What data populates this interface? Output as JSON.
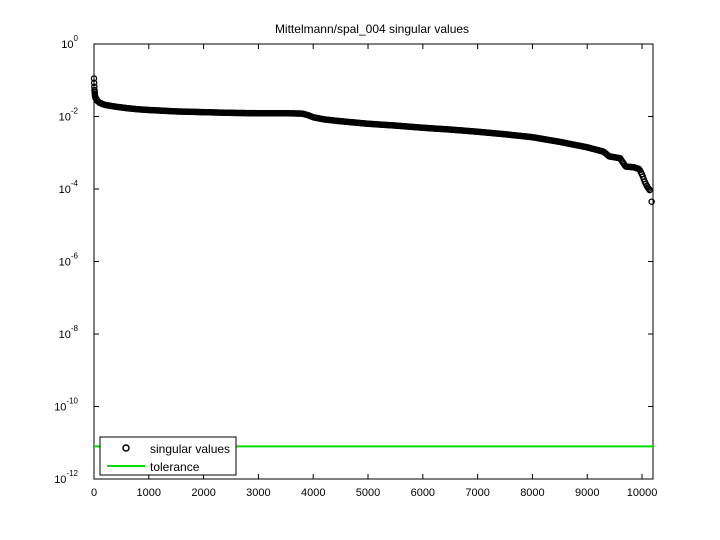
{
  "chart_data": {
    "type": "scatter",
    "title": "Mittelmann/spal_004 singular values",
    "xlabel": "",
    "ylabel": "",
    "xlim": [
      0,
      10200
    ],
    "yscale": "log",
    "ylim_exp": [
      -12,
      0
    ],
    "x_ticks": [
      0,
      1000,
      2000,
      3000,
      4000,
      5000,
      6000,
      7000,
      8000,
      9000,
      10000
    ],
    "y_ticks": [
      {
        "exp": 0,
        "base": "10",
        "sup": "0"
      },
      {
        "exp": -2,
        "base": "10",
        "sup": "-2"
      },
      {
        "exp": -4,
        "base": "10",
        "sup": "-4"
      },
      {
        "exp": -6,
        "base": "10",
        "sup": "-6"
      },
      {
        "exp": -8,
        "base": "10",
        "sup": "-8"
      },
      {
        "exp": -10,
        "base": "10",
        "sup": "-10"
      },
      {
        "exp": -12,
        "base": "10",
        "sup": "-12"
      }
    ],
    "series": [
      {
        "name": "singular values",
        "marker": "circle",
        "color": "#000000",
        "points_log10": [
          [
            0,
            -0.95
          ],
          [
            5,
            -1.15
          ],
          [
            10,
            -1.3
          ],
          [
            20,
            -1.45
          ],
          [
            50,
            -1.55
          ],
          [
            100,
            -1.62
          ],
          [
            200,
            -1.68
          ],
          [
            400,
            -1.73
          ],
          [
            600,
            -1.77
          ],
          [
            800,
            -1.8
          ],
          [
            1000,
            -1.82
          ],
          [
            1500,
            -1.86
          ],
          [
            2000,
            -1.88
          ],
          [
            2500,
            -1.9
          ],
          [
            3000,
            -1.91
          ],
          [
            3500,
            -1.91
          ],
          [
            3800,
            -1.92
          ],
          [
            3900,
            -1.96
          ],
          [
            4000,
            -2.02
          ],
          [
            4200,
            -2.08
          ],
          [
            4500,
            -2.13
          ],
          [
            5000,
            -2.2
          ],
          [
            5500,
            -2.25
          ],
          [
            6000,
            -2.31
          ],
          [
            6500,
            -2.36
          ],
          [
            7000,
            -2.42
          ],
          [
            7500,
            -2.49
          ],
          [
            8000,
            -2.57
          ],
          [
            8500,
            -2.7
          ],
          [
            9000,
            -2.85
          ],
          [
            9300,
            -2.97
          ],
          [
            9400,
            -3.1
          ],
          [
            9600,
            -3.15
          ],
          [
            9700,
            -3.38
          ],
          [
            9850,
            -3.4
          ],
          [
            9950,
            -3.45
          ],
          [
            10000,
            -3.6
          ],
          [
            10050,
            -3.8
          ],
          [
            10100,
            -3.95
          ],
          [
            10150,
            -4.05
          ],
          [
            10175,
            -4.35
          ]
        ]
      },
      {
        "name": "tolerance",
        "marker": "line",
        "color": "#00dd00",
        "value_log10": -11.1
      }
    ],
    "legend": {
      "position": "bottom-left",
      "entries": [
        "singular values",
        "tolerance"
      ]
    }
  }
}
